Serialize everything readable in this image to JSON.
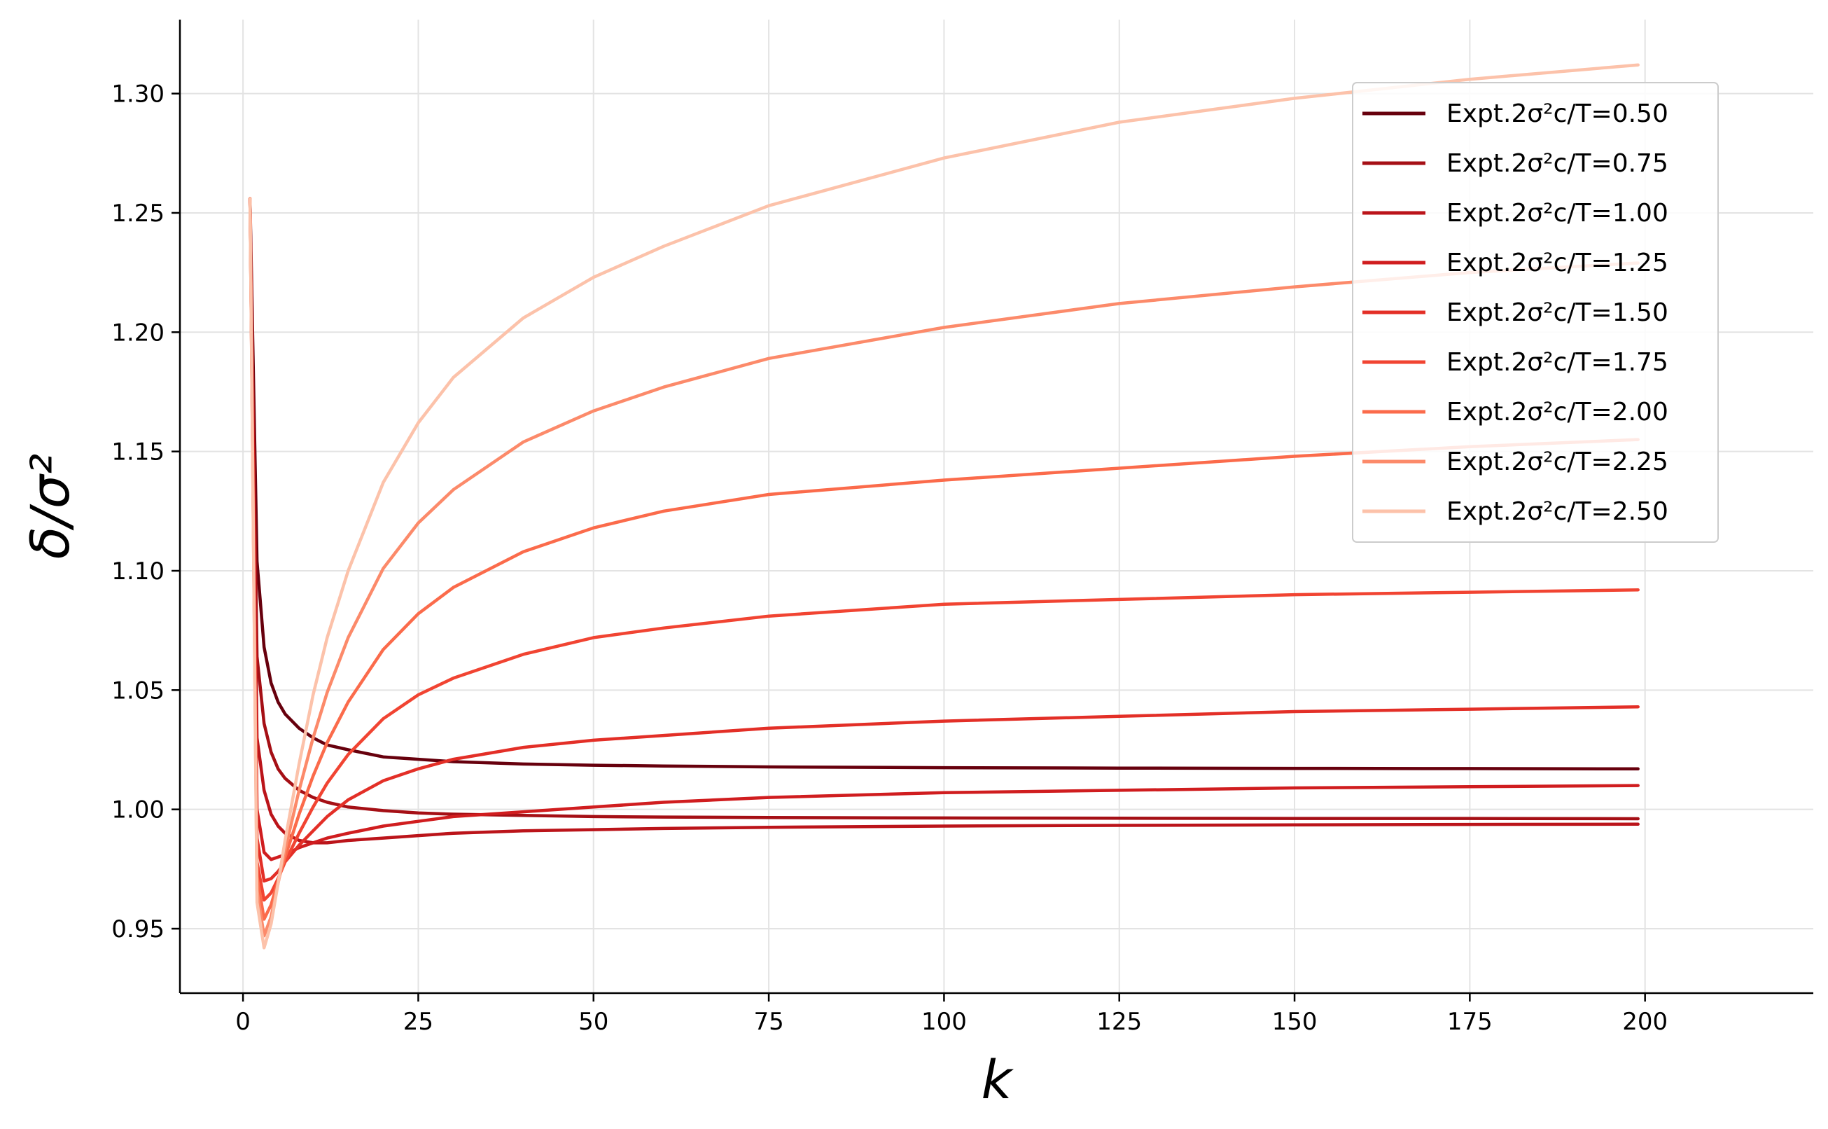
{
  "chart_data": {
    "type": "line",
    "xlabel": "k",
    "ylabel": "δ/σ²",
    "xlim": [
      -9,
      224
    ],
    "ylim": [
      0.923,
      1.331
    ],
    "xticks": [
      0,
      25,
      50,
      75,
      100,
      125,
      150,
      175,
      200
    ],
    "xtick_labels": [
      "0",
      "25",
      "50",
      "75",
      "100",
      "125",
      "150",
      "175",
      "200"
    ],
    "yticks": [
      0.95,
      1.0,
      1.05,
      1.1,
      1.15,
      1.2,
      1.25,
      1.3
    ],
    "ytick_labels": [
      "0.95",
      "1.00",
      "1.05",
      "1.10",
      "1.15",
      "1.20",
      "1.25",
      "1.30"
    ],
    "grid": true,
    "legend_position": "top-right",
    "x": [
      1,
      2,
      3,
      4,
      5,
      6,
      8,
      10,
      12,
      15,
      20,
      25,
      30,
      40,
      50,
      60,
      75,
      100,
      125,
      150,
      175,
      199
    ],
    "series": [
      {
        "name": "Expt.2σ²c/T=0.50",
        "color": "#67000d",
        "values": [
          1.256,
          1.104,
          1.068,
          1.053,
          1.045,
          1.04,
          1.034,
          1.03,
          1.027,
          1.025,
          1.022,
          1.021,
          1.02,
          1.019,
          1.0185,
          1.0182,
          1.0178,
          1.0175,
          1.0173,
          1.0172,
          1.0171,
          1.017
        ]
      },
      {
        "name": "Expt.2σ²c/T=0.75",
        "color": "#a50f15",
        "values": [
          1.256,
          1.064,
          1.036,
          1.024,
          1.017,
          1.013,
          1.008,
          1.005,
          1.003,
          1.001,
          0.9995,
          0.9985,
          0.998,
          0.9975,
          0.997,
          0.9968,
          0.9966,
          0.9964,
          0.9963,
          0.9962,
          0.9962,
          0.9961
        ]
      },
      {
        "name": "Expt.2σ²c/T=1.00",
        "color": "#bb141a",
        "values": [
          1.256,
          1.03,
          1.008,
          0.998,
          0.993,
          0.99,
          0.987,
          0.986,
          0.986,
          0.987,
          0.988,
          0.989,
          0.99,
          0.991,
          0.9915,
          0.992,
          0.9925,
          0.993,
          0.9933,
          0.9935,
          0.9937,
          0.9938
        ]
      },
      {
        "name": "Expt.2σ²c/T=1.25",
        "color": "#d01d1f",
        "values": [
          1.256,
          1.0,
          0.982,
          0.979,
          0.98,
          0.981,
          0.984,
          0.986,
          0.988,
          0.99,
          0.993,
          0.995,
          0.997,
          0.999,
          1.001,
          1.003,
          1.005,
          1.007,
          1.008,
          1.009,
          1.0095,
          1.01
        ]
      },
      {
        "name": "Expt.2σ²c/T=1.50",
        "color": "#e32f27",
        "values": [
          1.256,
          0.988,
          0.97,
          0.971,
          0.974,
          0.978,
          0.985,
          0.991,
          0.997,
          1.004,
          1.012,
          1.017,
          1.021,
          1.026,
          1.029,
          1.031,
          1.034,
          1.037,
          1.039,
          1.041,
          1.042,
          1.043
        ]
      },
      {
        "name": "Expt.2σ²c/T=1.75",
        "color": "#f14432",
        "values": [
          1.256,
          0.978,
          0.962,
          0.965,
          0.971,
          0.978,
          0.99,
          1.001,
          1.011,
          1.023,
          1.038,
          1.048,
          1.055,
          1.065,
          1.072,
          1.076,
          1.081,
          1.086,
          1.088,
          1.09,
          1.091,
          1.092
        ]
      },
      {
        "name": "Expt.2σ²c/T=2.00",
        "color": "#fb6b4b",
        "values": [
          1.256,
          0.972,
          0.954,
          0.96,
          0.97,
          0.98,
          0.998,
          1.014,
          1.028,
          1.045,
          1.067,
          1.082,
          1.093,
          1.108,
          1.118,
          1.125,
          1.132,
          1.138,
          1.143,
          1.148,
          1.152,
          1.155
        ]
      },
      {
        "name": "Expt.2σ²c/T=2.25",
        "color": "#fc8a6a",
        "values": [
          1.256,
          0.966,
          0.947,
          0.955,
          0.969,
          0.983,
          1.008,
          1.03,
          1.049,
          1.072,
          1.101,
          1.12,
          1.134,
          1.154,
          1.167,
          1.177,
          1.189,
          1.202,
          1.212,
          1.219,
          1.225,
          1.229
        ]
      },
      {
        "name": "Expt.2σ²c/T=2.50",
        "color": "#fcc2aa",
        "values": [
          1.256,
          0.961,
          0.942,
          0.952,
          0.969,
          0.987,
          1.019,
          1.048,
          1.072,
          1.1,
          1.137,
          1.162,
          1.181,
          1.206,
          1.223,
          1.236,
          1.253,
          1.273,
          1.288,
          1.298,
          1.306,
          1.312
        ]
      }
    ]
  }
}
